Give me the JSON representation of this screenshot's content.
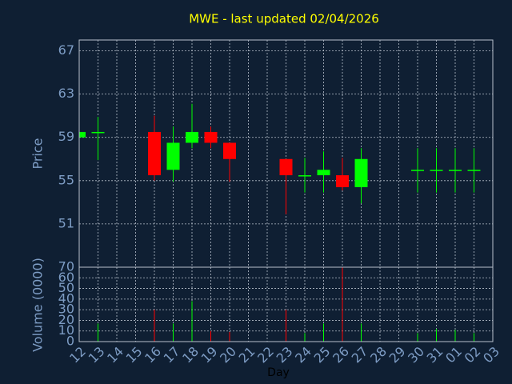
{
  "chart_data": [
    {
      "type": "candlestick",
      "title": "MWE - last updated 02/04/2026",
      "ylabel": "Price",
      "open": [
        59.0,
        59.4,
        null,
        null,
        59.5,
        56.0,
        58.5,
        59.5,
        58.5,
        null,
        null,
        57.0,
        55.4,
        55.5,
        55.5,
        54.4,
        null,
        null,
        56.0,
        56.0,
        56.0,
        56.0,
        null
      ],
      "high": [
        59.5,
        60.9,
        null,
        null,
        61.0,
        60.0,
        62.1,
        60.0,
        58.5,
        null,
        null,
        57.0,
        57.1,
        57.7,
        57.1,
        58.0,
        null,
        null,
        58.0,
        58.0,
        58.0,
        58.0,
        null
      ],
      "low": [
        59.0,
        56.9,
        null,
        null,
        55.0,
        54.9,
        58.0,
        58.0,
        54.9,
        null,
        null,
        51.9,
        53.9,
        53.9,
        54.1,
        52.9,
        null,
        null,
        53.9,
        53.9,
        53.9,
        53.9,
        null
      ],
      "close": [
        59.5,
        59.5,
        null,
        null,
        55.5,
        58.5,
        59.5,
        58.5,
        57.0,
        null,
        null,
        55.5,
        55.5,
        56.0,
        54.4,
        57.0,
        null,
        null,
        56.0,
        56.0,
        56.0,
        56.0,
        null
      ],
      "up_color": "#00ff00",
      "down_color": "#ff0000",
      "ylim": [
        47,
        68
      ],
      "yticks": [
        51,
        55,
        59,
        63,
        67
      ],
      "grid": true
    },
    {
      "type": "bar",
      "ylabel": "Volume (0000)",
      "xlabel": "Day",
      "categories": [
        "12",
        "13",
        "14",
        "15",
        "16",
        "17",
        "18",
        "19",
        "20",
        "21",
        "22",
        "23",
        "24",
        "25",
        "26",
        "27",
        "28",
        "29",
        "30",
        "31",
        "01",
        "02",
        "03"
      ],
      "values": [
        null,
        17,
        null,
        null,
        30,
        17,
        38,
        10,
        9,
        null,
        null,
        30,
        8,
        17,
        70,
        17,
        null,
        null,
        8,
        12,
        11,
        8,
        null
      ],
      "ylim": [
        0,
        70
      ],
      "yticks": [
        0,
        10,
        20,
        30,
        40,
        50,
        60,
        70
      ],
      "grid": true
    }
  ]
}
